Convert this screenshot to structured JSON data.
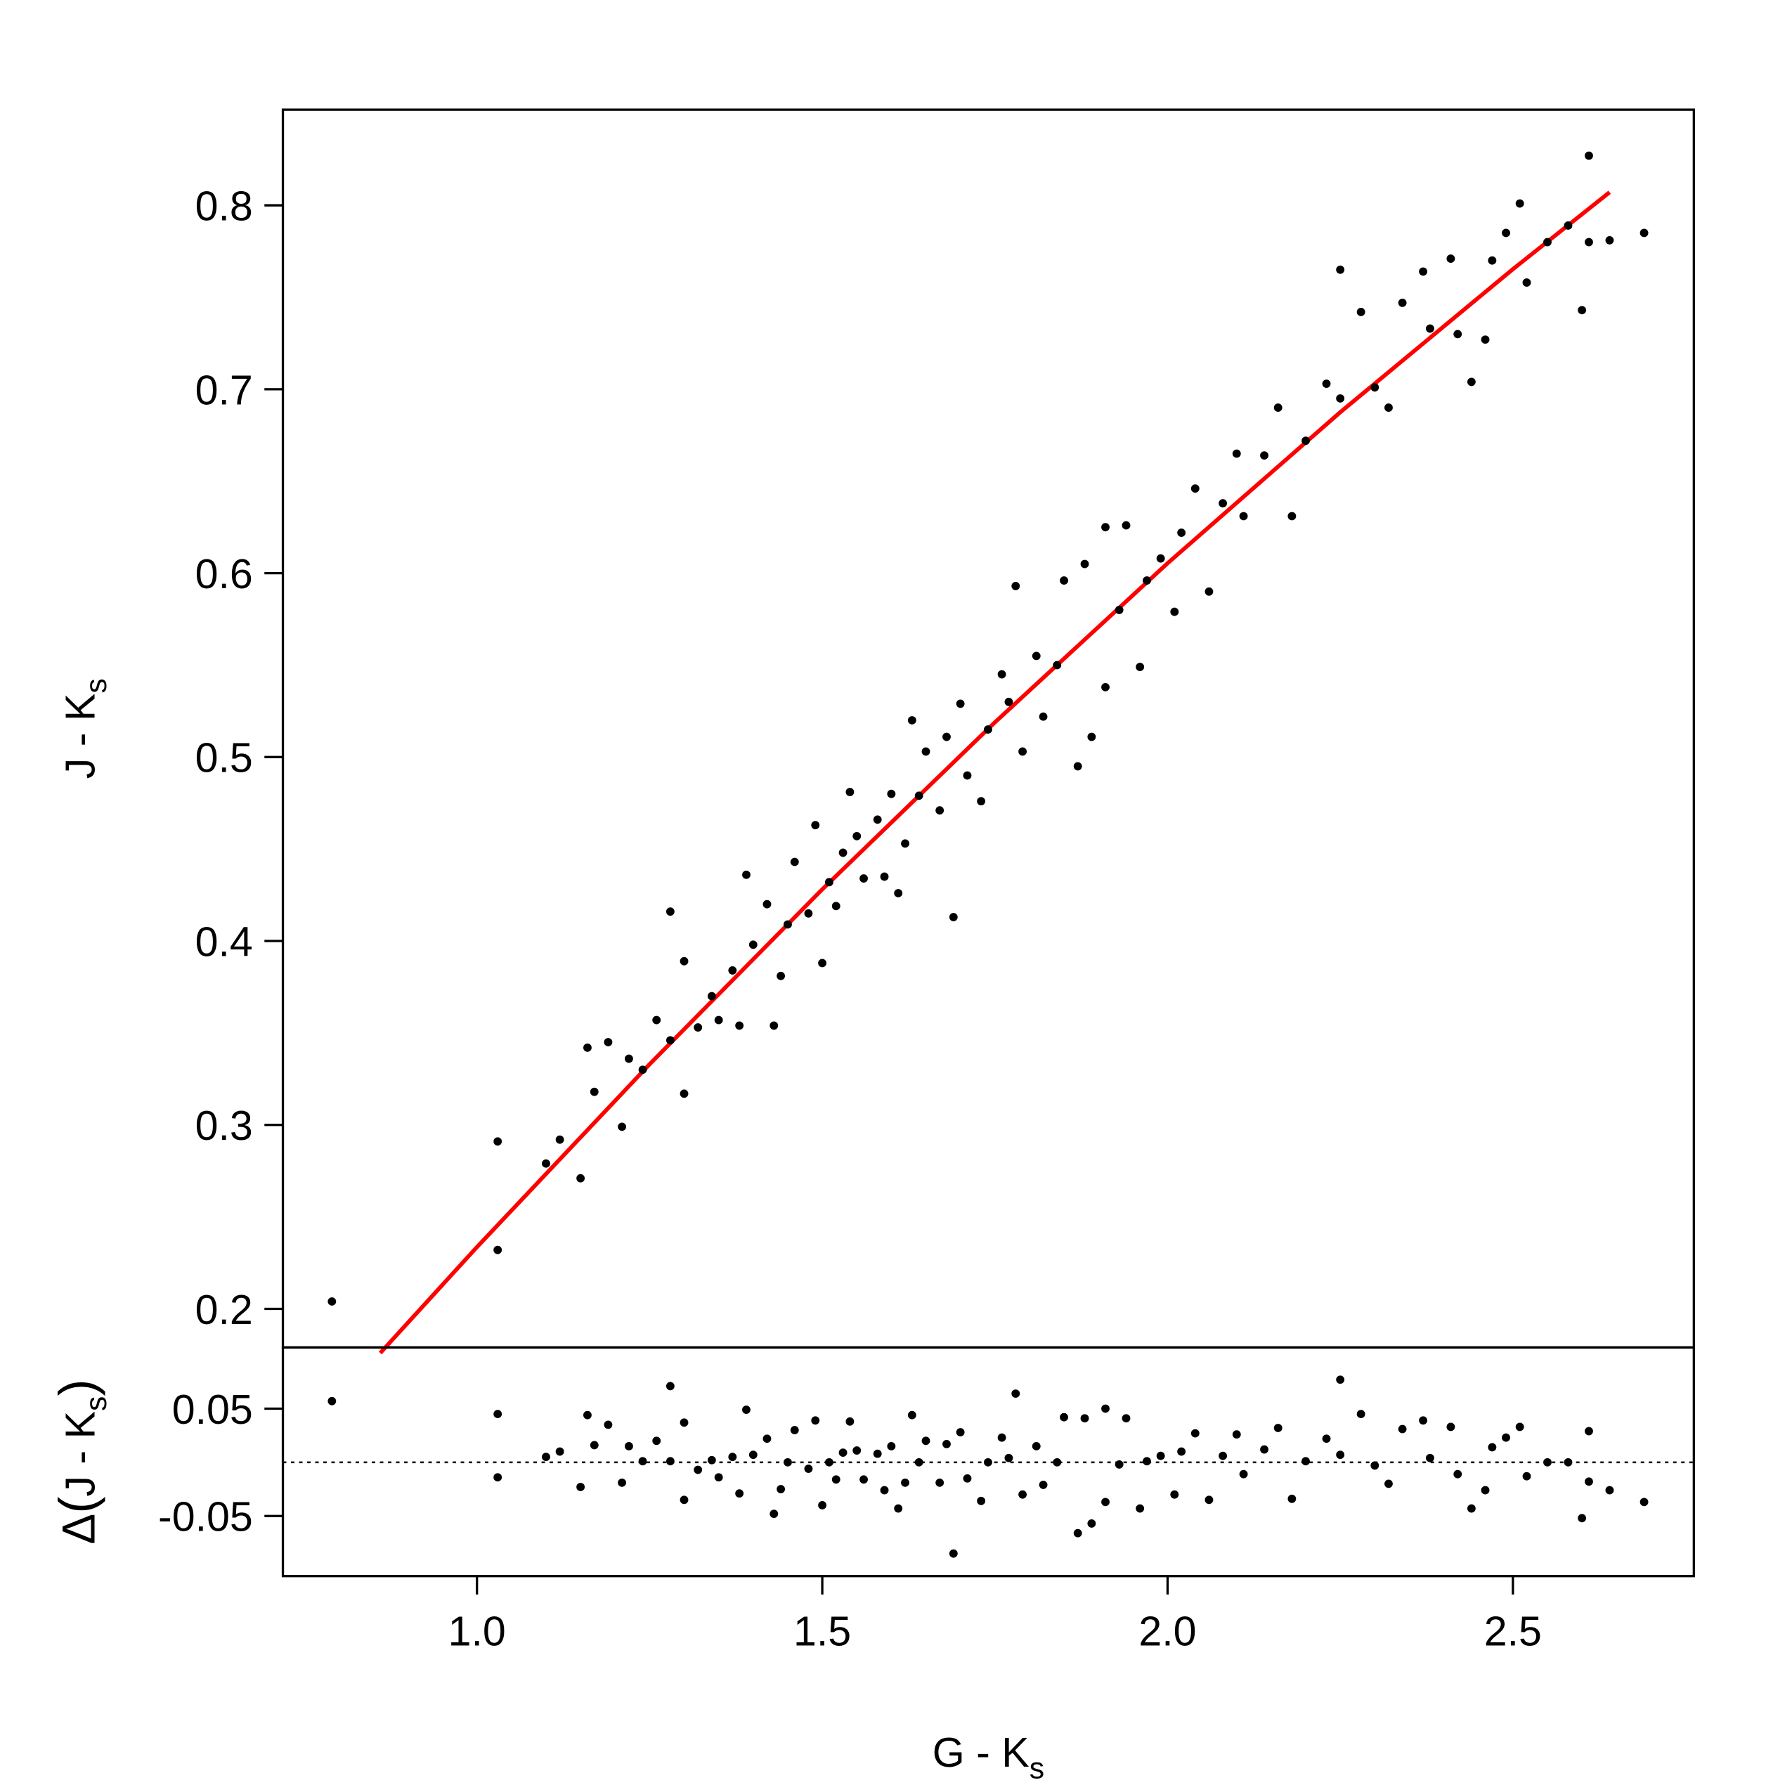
{
  "chart_data": [
    {
      "type": "scatter",
      "ylabel": [
        "J - K",
        "s"
      ],
      "color": "#000000",
      "x": [
        0.79,
        1.03,
        1.03,
        1.1,
        1.12,
        1.15,
        1.16,
        1.17,
        1.19,
        1.21,
        1.22,
        1.24,
        1.26,
        1.28,
        1.28,
        1.3,
        1.3,
        1.32,
        1.34,
        1.35,
        1.37,
        1.38,
        1.39,
        1.4,
        1.42,
        1.43,
        1.44,
        1.45,
        1.46,
        1.48,
        1.49,
        1.5,
        1.51,
        1.52,
        1.53,
        1.54,
        1.55,
        1.56,
        1.58,
        1.59,
        1.6,
        1.61,
        1.62,
        1.63,
        1.64,
        1.65,
        1.67,
        1.68,
        1.69,
        1.7,
        1.71,
        1.73,
        1.74,
        1.76,
        1.77,
        1.78,
        1.79,
        1.81,
        1.82,
        1.84,
        1.85,
        1.87,
        1.88,
        1.89,
        1.91,
        1.91,
        1.93,
        1.94,
        1.96,
        1.97,
        1.99,
        2.01,
        2.02,
        2.04,
        2.06,
        2.08,
        2.1,
        2.11,
        2.14,
        2.16,
        2.18,
        2.2,
        2.23,
        2.25,
        2.25,
        2.28,
        2.3,
        2.32,
        2.34,
        2.37,
        2.38,
        2.41,
        2.42,
        2.44,
        2.46,
        2.47,
        2.49,
        2.51,
        2.52,
        2.55,
        2.58,
        2.6,
        2.61,
        2.61,
        2.64,
        2.69
      ],
      "values": [
        0.204,
        0.291,
        0.232,
        0.279,
        0.292,
        0.271,
        0.342,
        0.318,
        0.345,
        0.299,
        0.336,
        0.33,
        0.357,
        0.346,
        0.416,
        0.317,
        0.389,
        0.353,
        0.37,
        0.357,
        0.384,
        0.354,
        0.436,
        0.398,
        0.42,
        0.354,
        0.381,
        0.409,
        0.443,
        0.415,
        0.463,
        0.388,
        0.432,
        0.419,
        0.448,
        0.481,
        0.457,
        0.434,
        0.466,
        0.435,
        0.48,
        0.426,
        0.453,
        0.52,
        0.479,
        0.503,
        0.471,
        0.511,
        0.413,
        0.529,
        0.49,
        0.476,
        0.515,
        0.545,
        0.53,
        0.593,
        0.503,
        0.555,
        0.522,
        0.55,
        0.596,
        0.495,
        0.605,
        0.511,
        0.538,
        0.625,
        0.58,
        0.626,
        0.549,
        0.596,
        0.608,
        0.579,
        0.622,
        0.646,
        0.59,
        0.638,
        0.665,
        0.631,
        0.664,
        0.69,
        0.631,
        0.672,
        0.703,
        0.765,
        0.695,
        0.742,
        0.701,
        0.69,
        0.747,
        0.764,
        0.733,
        0.771,
        0.73,
        0.704,
        0.727,
        0.77,
        0.785,
        0.801,
        0.758,
        0.78,
        0.789,
        0.743,
        0.827,
        0.78,
        0.781,
        0.785
      ],
      "fit": {
        "color": "#ff0000",
        "x": [
          0.86,
          1.0,
          1.25,
          1.5,
          1.75,
          2.0,
          2.25,
          2.5,
          2.64
        ],
        "values": [
          0.176,
          0.2336,
          0.333,
          0.4281,
          0.5189,
          0.6054,
          0.6875,
          0.7653,
          0.8071
        ]
      },
      "xlim": [
        0.719,
        2.762
      ],
      "ylim": [
        0.179,
        0.852
      ],
      "yticks": [
        0.2,
        0.3,
        0.4,
        0.5,
        0.6,
        0.7,
        0.8
      ]
    },
    {
      "type": "scatter",
      "ylabel": [
        "Δ",
        "(",
        "J - K",
        "s",
        ")"
      ],
      "xlabel": [
        "G - K",
        "s"
      ],
      "color": "#000000",
      "x": [
        0.79,
        1.03,
        1.03,
        1.1,
        1.12,
        1.15,
        1.16,
        1.17,
        1.19,
        1.21,
        1.22,
        1.24,
        1.26,
        1.28,
        1.28,
        1.3,
        1.3,
        1.32,
        1.34,
        1.35,
        1.37,
        1.38,
        1.39,
        1.4,
        1.42,
        1.43,
        1.44,
        1.45,
        1.46,
        1.48,
        1.49,
        1.5,
        1.51,
        1.52,
        1.53,
        1.54,
        1.55,
        1.56,
        1.58,
        1.59,
        1.6,
        1.61,
        1.62,
        1.63,
        1.64,
        1.65,
        1.67,
        1.68,
        1.69,
        1.7,
        1.71,
        1.73,
        1.74,
        1.76,
        1.77,
        1.78,
        1.79,
        1.81,
        1.82,
        1.84,
        1.85,
        1.87,
        1.88,
        1.89,
        1.91,
        1.91,
        1.93,
        1.94,
        1.96,
        1.97,
        1.99,
        2.01,
        2.02,
        2.04,
        2.06,
        2.08,
        2.1,
        2.11,
        2.14,
        2.16,
        2.18,
        2.2,
        2.23,
        2.25,
        2.25,
        2.28,
        2.3,
        2.32,
        2.34,
        2.37,
        2.38,
        2.41,
        2.42,
        2.44,
        2.46,
        2.47,
        2.49,
        2.51,
        2.52,
        2.55,
        2.58,
        2.6,
        2.61,
        2.61,
        2.64,
        2.69
      ],
      "values": [
        0.057,
        0.045,
        -0.014,
        0.005,
        0.01,
        -0.023,
        0.044,
        0.016,
        0.035,
        -0.019,
        0.015,
        0.001,
        0.02,
        0.001,
        0.071,
        -0.035,
        0.037,
        -0.007,
        0.002,
        -0.014,
        0.005,
        -0.029,
        0.049,
        0.007,
        0.022,
        -0.048,
        -0.025,
        0.0,
        0.03,
        -0.006,
        0.039,
        -0.04,
        0.0,
        -0.016,
        0.009,
        0.038,
        0.011,
        -0.016,
        0.008,
        -0.026,
        0.015,
        -0.043,
        -0.019,
        0.044,
        0.0,
        0.02,
        -0.019,
        0.017,
        -0.085,
        0.028,
        -0.015,
        -0.036,
        0.0,
        0.023,
        0.004,
        0.064,
        -0.03,
        0.015,
        -0.021,
        0.0,
        0.042,
        -0.066,
        0.041,
        -0.057,
        -0.037,
        0.05,
        -0.002,
        0.041,
        -0.043,
        0.001,
        0.006,
        -0.03,
        0.01,
        0.027,
        -0.035,
        0.006,
        0.026,
        -0.011,
        0.012,
        0.032,
        -0.034,
        0.001,
        0.022,
        0.077,
        0.007,
        0.045,
        -0.003,
        -0.02,
        0.031,
        0.039,
        0.004,
        0.033,
        -0.011,
        -0.043,
        -0.026,
        0.014,
        0.023,
        0.033,
        -0.013,
        0.0,
        0.0,
        -0.052,
        0.029,
        -0.018,
        -0.026,
        -0.037
      ],
      "reference_line": 0,
      "xlim": [
        0.719,
        2.762
      ],
      "ylim": [
        -0.106,
        0.107
      ],
      "yticks": [
        -0.05,
        0.05
      ],
      "xticks": [
        {
          "value": 1,
          "label": "1.0"
        },
        1.5,
        {
          "value": 2,
          "label": "2.0"
        },
        2.5
      ]
    }
  ]
}
